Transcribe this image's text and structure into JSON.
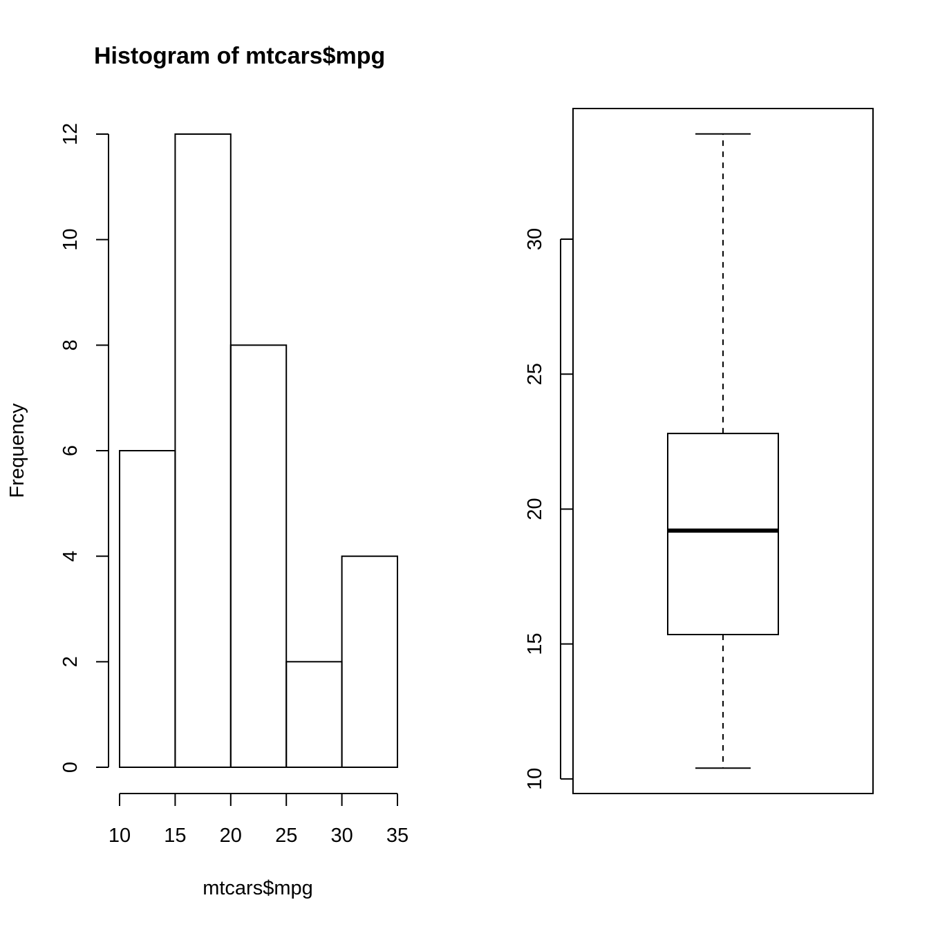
{
  "chart_data": [
    {
      "type": "bar",
      "title": "Histogram of mtcars$mpg",
      "xlabel": "mtcars$mpg",
      "ylabel": "Frequency",
      "bins": [
        {
          "start": 10,
          "end": 15,
          "count": 6
        },
        {
          "start": 15,
          "end": 20,
          "count": 12
        },
        {
          "start": 20,
          "end": 25,
          "count": 8
        },
        {
          "start": 25,
          "end": 30,
          "count": 2
        },
        {
          "start": 30,
          "end": 35,
          "count": 4
        }
      ],
      "xticks": [
        10,
        15,
        20,
        25,
        30,
        35
      ],
      "yticks": [
        0,
        2,
        4,
        6,
        8,
        10,
        12
      ],
      "xlim": [
        10,
        35
      ],
      "ylim": [
        0,
        12
      ],
      "grid": false,
      "legend": "none"
    },
    {
      "type": "box",
      "title": "",
      "ylabel": "",
      "stats": {
        "min": 10.4,
        "q1": 15.35,
        "median": 19.2,
        "q3": 22.8,
        "max": 33.9
      },
      "yticks": [
        10,
        15,
        20,
        25,
        30
      ],
      "ylim": [
        9.46,
        34.84
      ],
      "grid": false,
      "legend": "none"
    }
  ]
}
